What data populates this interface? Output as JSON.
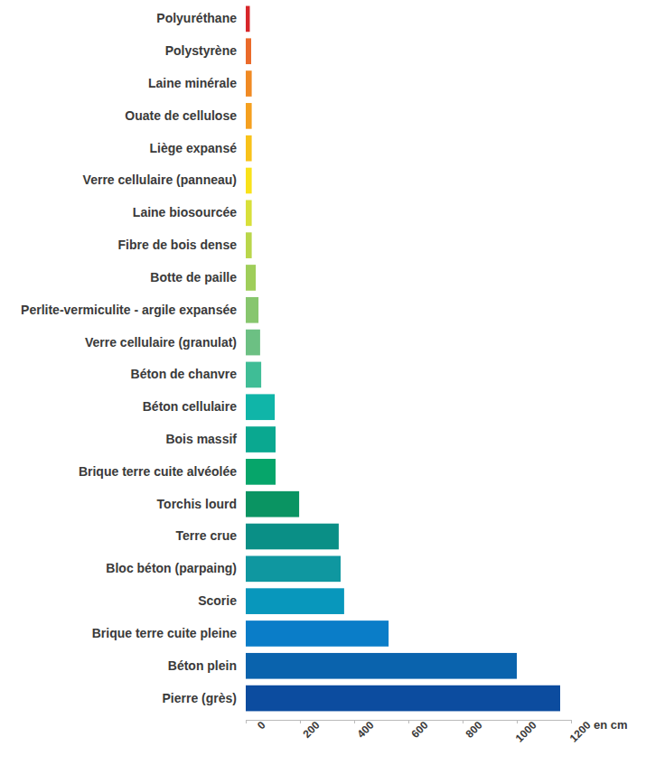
{
  "chart_data": {
    "type": "bar",
    "orientation": "horizontal",
    "x_label": "en cm",
    "categories": [
      "Polyuréthane",
      "Polystyrène",
      "Laine minérale",
      "Ouate de cellulose",
      "Liège expansé",
      "Verre cellulaire (panneau)",
      "Laine biosourcée",
      "Fibre de bois dense",
      "Botte de paille",
      "Perlite-vermiculite - argile expansée",
      "Verre cellulaire (granulat)",
      "Béton de chanvre",
      "Béton cellulaire",
      "Bois massif",
      "Brique terre cuite alvéolée",
      "Torchis lourd",
      "Terre crue",
      "Bloc béton (parpaing)",
      "Scorie",
      "Brique terre cuite pleine",
      "Béton plein",
      "Pierre (grès)"
    ],
    "values": [
      15,
      20,
      22,
      22,
      22,
      22,
      22,
      22,
      37,
      47,
      53,
      57,
      107,
      110,
      110,
      197,
      343,
      350,
      363,
      527,
      1000,
      1160
    ],
    "colors": [
      "#d7262a",
      "#ea6a2a",
      "#f08a24",
      "#f5a01f",
      "#f8c21a",
      "#f9e21a",
      "#d8e03a",
      "#b9d64a",
      "#9fce5a",
      "#87c66e",
      "#6cc083",
      "#3fbd96",
      "#10b5a8",
      "#0aa890",
      "#06a56a",
      "#0a9462",
      "#0a8f86",
      "#0f97a0",
      "#0897bc",
      "#0a7dc8",
      "#0a63ad",
      "#0c4c9f"
    ],
    "xlim": [
      0,
      1200
    ],
    "xticks": [
      0,
      200,
      400,
      600,
      800,
      1000,
      1200
    ],
    "grid": false
  }
}
